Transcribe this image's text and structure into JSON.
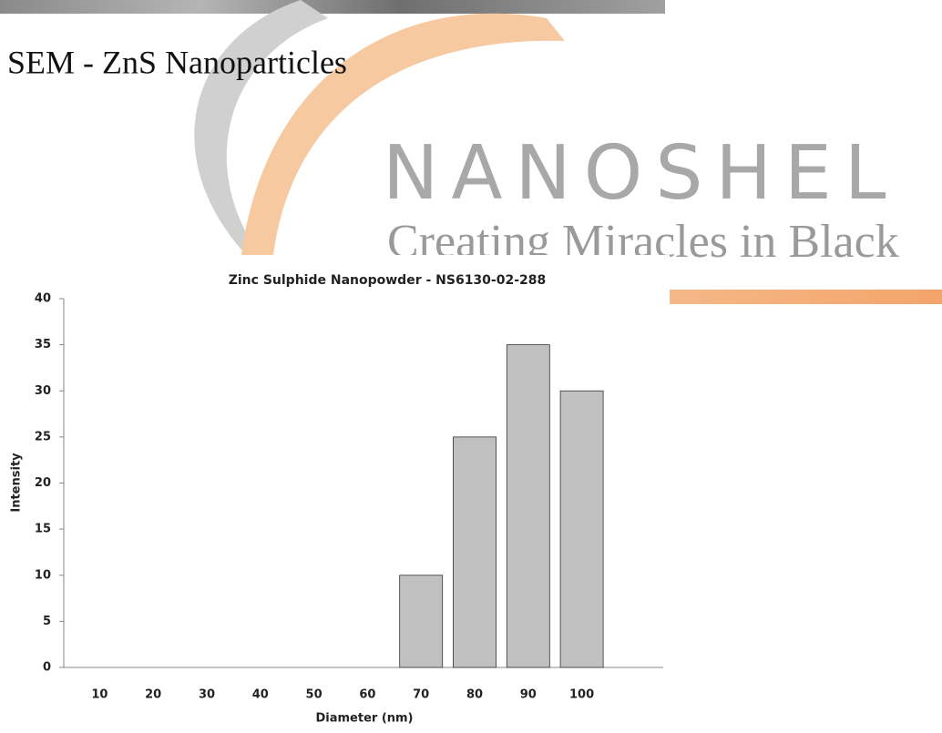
{
  "heading": "SEM - ZnS Nanoparticles",
  "watermark": {
    "brand": "NANOSHEL",
    "tagline": "Creating Miracles in Black"
  },
  "chart_data": {
    "type": "bar",
    "title": "Zinc Sulphide Nanopowder - NS6130-02-288",
    "x_label": "Diameter (nm)",
    "y_label": "Intensity",
    "categories": [
      "10",
      "20",
      "30",
      "40",
      "50",
      "60",
      "70",
      "80",
      "90",
      "100"
    ],
    "values": [
      0,
      0,
      0,
      0,
      0,
      0,
      10,
      25,
      35,
      30
    ],
    "color": "#c0c0c0",
    "ylim": [
      0,
      40
    ],
    "yticks": [
      0,
      5,
      10,
      15,
      20,
      25,
      30,
      35,
      40
    ],
    "grid": false
  }
}
